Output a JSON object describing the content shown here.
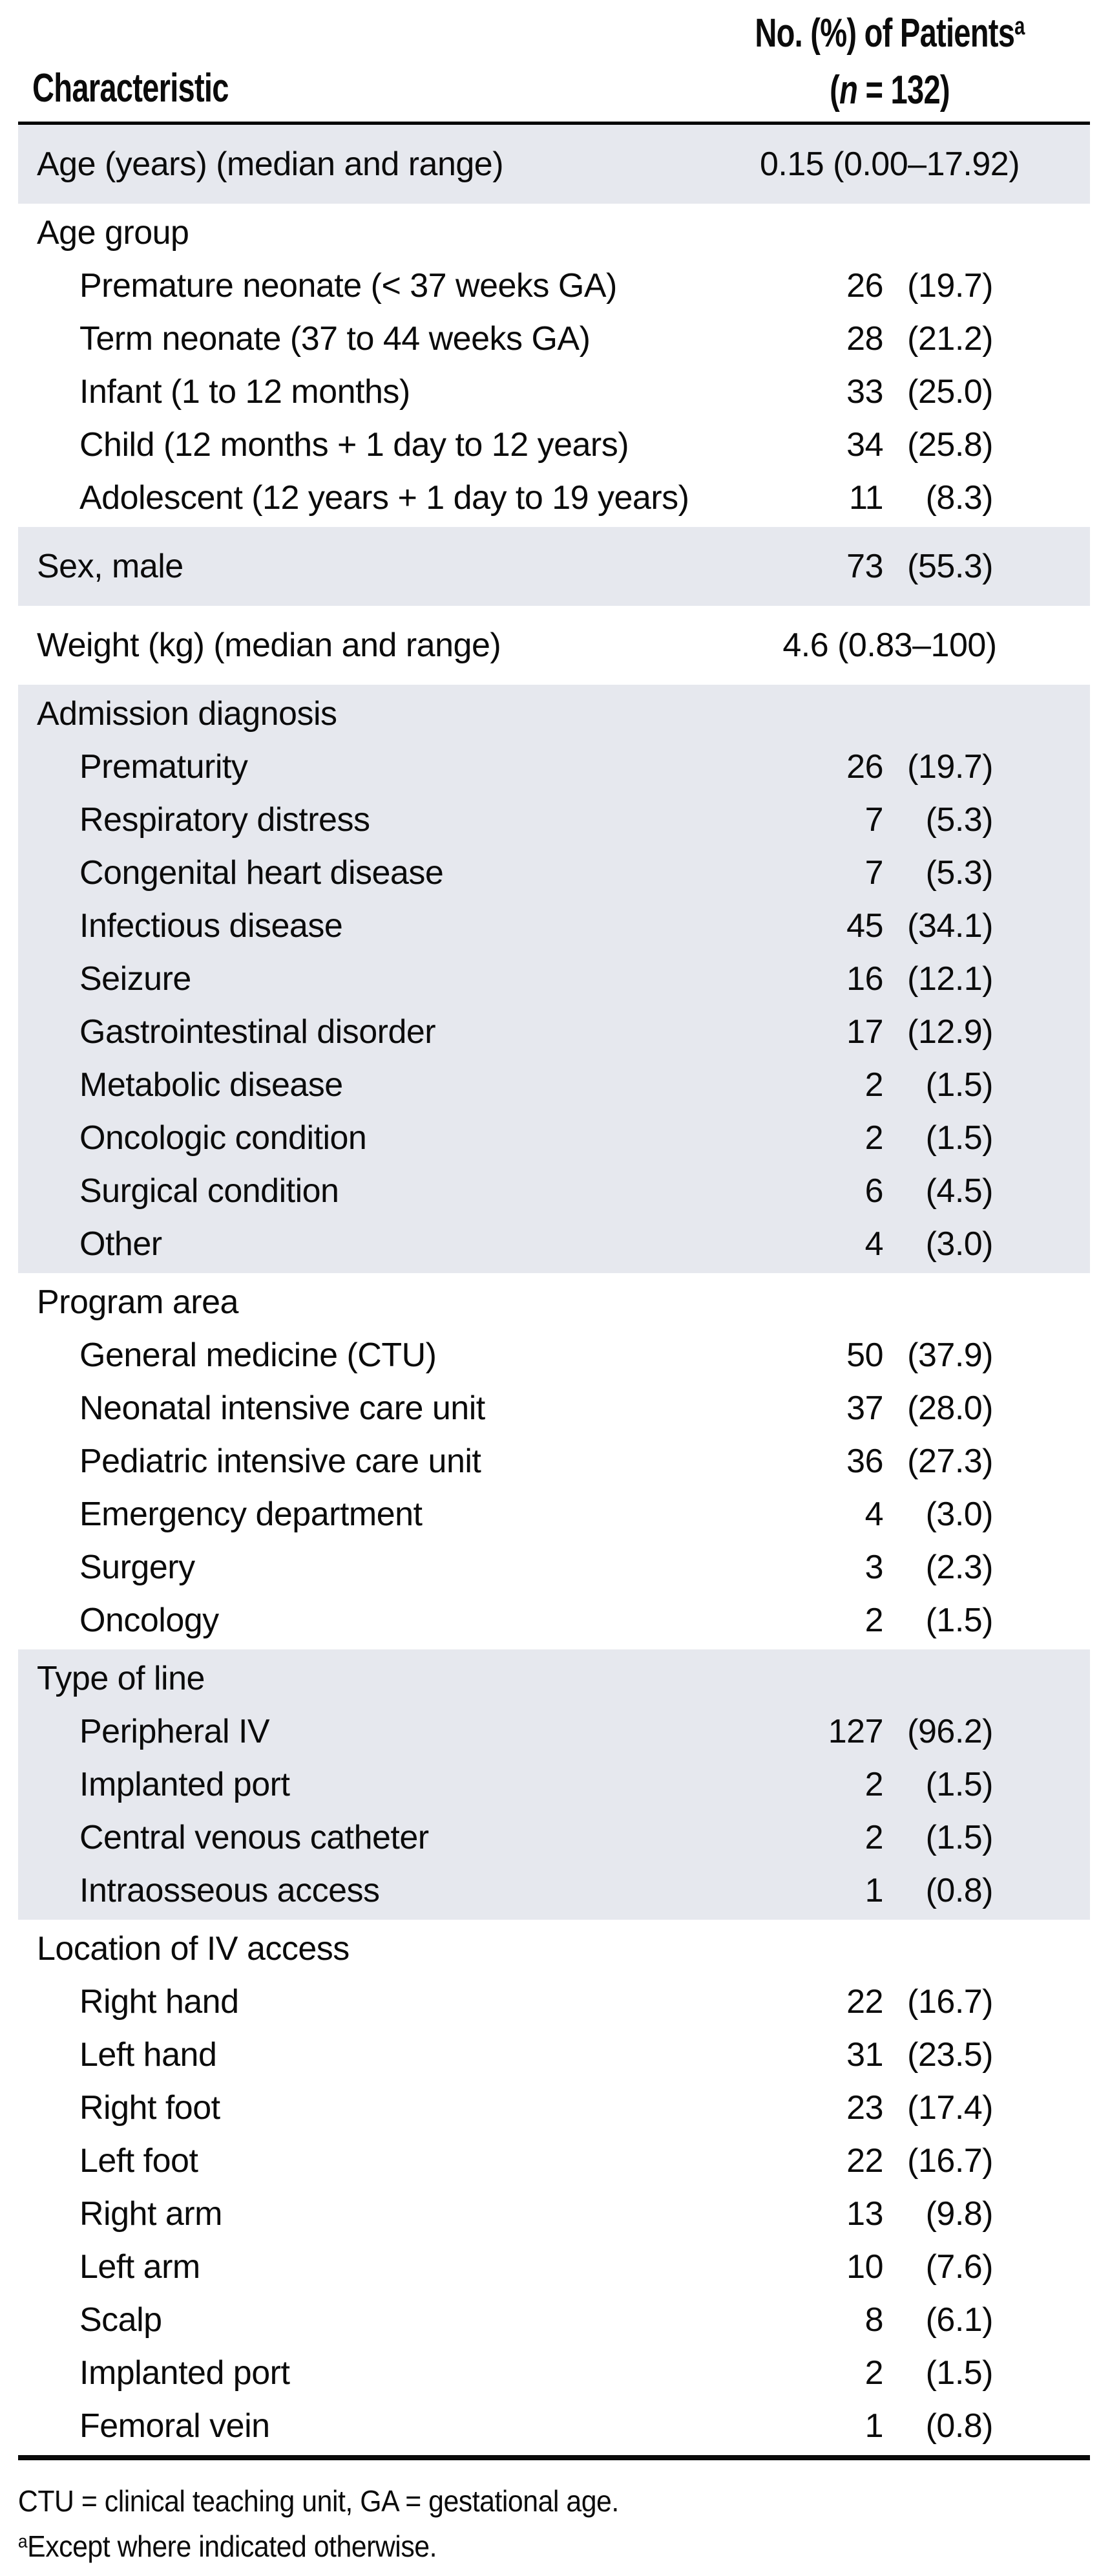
{
  "table": {
    "shade_color": "#e6e8ee",
    "header": {
      "col1": "Characteristic",
      "col2_line1": "No. (%) of Patients",
      "col2_line1_sup": "a",
      "col2_line2_open": "(",
      "col2_line2_italic": "n",
      "col2_line2_rest": " = 132)"
    },
    "sections": [
      {
        "shaded": true,
        "rows": [
          {
            "label": "Age (years) (median and range)",
            "indent": 0,
            "type": "span",
            "value": "0.15 (0.00–17.92)"
          }
        ]
      },
      {
        "shaded": false,
        "rows": [
          {
            "label": "Age group",
            "indent": 0,
            "type": "none"
          },
          {
            "label": "Premature neonate (< 37 weeks GA)",
            "indent": 1,
            "type": "pair",
            "n": "26",
            "pct": "(19.7)"
          },
          {
            "label": "Term neonate (37 to 44 weeks GA)",
            "indent": 1,
            "type": "pair",
            "n": "28",
            "pct": "(21.2)"
          },
          {
            "label": "Infant (1 to 12 months)",
            "indent": 1,
            "type": "pair",
            "n": "33",
            "pct": "(25.0)"
          },
          {
            "label": "Child (12 months + 1 day to 12 years)",
            "indent": 1,
            "type": "pair",
            "n": "34",
            "pct": "(25.8)"
          },
          {
            "label": "Adolescent (12 years + 1 day to 19 years)",
            "indent": 1,
            "type": "pair",
            "n": "11",
            "pct": "(8.3)"
          }
        ]
      },
      {
        "shaded": true,
        "rows": [
          {
            "label": "Sex, male",
            "indent": 0,
            "type": "pair",
            "n": "73",
            "pct": "(55.3)"
          }
        ]
      },
      {
        "shaded": false,
        "rows": [
          {
            "label": "Weight (kg) (median and range)",
            "indent": 0,
            "type": "span",
            "value": "4.6 (0.83–100)"
          }
        ]
      },
      {
        "shaded": true,
        "rows": [
          {
            "label": "Admission diagnosis",
            "indent": 0,
            "type": "none"
          },
          {
            "label": "Prematurity",
            "indent": 1,
            "type": "pair",
            "n": "26",
            "pct": "(19.7)"
          },
          {
            "label": "Respiratory distress",
            "indent": 1,
            "type": "pair",
            "n": "7",
            "pct": "(5.3)"
          },
          {
            "label": "Congenital heart disease",
            "indent": 1,
            "type": "pair",
            "n": "7",
            "pct": "(5.3)"
          },
          {
            "label": "Infectious disease",
            "indent": 1,
            "type": "pair",
            "n": "45",
            "pct": "(34.1)"
          },
          {
            "label": "Seizure",
            "indent": 1,
            "type": "pair",
            "n": "16",
            "pct": "(12.1)"
          },
          {
            "label": "Gastrointestinal disorder",
            "indent": 1,
            "type": "pair",
            "n": "17",
            "pct": "(12.9)"
          },
          {
            "label": "Metabolic disease",
            "indent": 1,
            "type": "pair",
            "n": "2",
            "pct": "(1.5)"
          },
          {
            "label": "Oncologic condition",
            "indent": 1,
            "type": "pair",
            "n": "2",
            "pct": "(1.5)"
          },
          {
            "label": "Surgical condition",
            "indent": 1,
            "type": "pair",
            "n": "6",
            "pct": "(4.5)"
          },
          {
            "label": "Other",
            "indent": 1,
            "type": "pair",
            "n": "4",
            "pct": "(3.0)"
          }
        ]
      },
      {
        "shaded": false,
        "rows": [
          {
            "label": "Program area",
            "indent": 0,
            "type": "none"
          },
          {
            "label": "General medicine (CTU)",
            "indent": 1,
            "type": "pair",
            "n": "50",
            "pct": "(37.9)"
          },
          {
            "label": "Neonatal intensive care unit",
            "indent": 1,
            "type": "pair",
            "n": "37",
            "pct": "(28.0)"
          },
          {
            "label": "Pediatric intensive care unit",
            "indent": 1,
            "type": "pair",
            "n": "36",
            "pct": "(27.3)"
          },
          {
            "label": "Emergency department",
            "indent": 1,
            "type": "pair",
            "n": "4",
            "pct": "(3.0)"
          },
          {
            "label": "Surgery",
            "indent": 1,
            "type": "pair",
            "n": "3",
            "pct": "(2.3)"
          },
          {
            "label": "Oncology",
            "indent": 1,
            "type": "pair",
            "n": "2",
            "pct": "(1.5)"
          }
        ]
      },
      {
        "shaded": true,
        "rows": [
          {
            "label": "Type of line",
            "indent": 0,
            "type": "none"
          },
          {
            "label": "Peripheral IV",
            "indent": 1,
            "type": "pair",
            "n": "127",
            "pct": "(96.2)"
          },
          {
            "label": "Implanted port",
            "indent": 1,
            "type": "pair",
            "n": "2",
            "pct": "(1.5)"
          },
          {
            "label": "Central venous catheter",
            "indent": 1,
            "type": "pair",
            "n": "2",
            "pct": "(1.5)"
          },
          {
            "label": "Intraosseous access",
            "indent": 1,
            "type": "pair",
            "n": "1",
            "pct": "(0.8)"
          }
        ]
      },
      {
        "shaded": false,
        "rows": [
          {
            "label": "Location of IV access",
            "indent": 0,
            "type": "none"
          },
          {
            "label": "Right hand",
            "indent": 1,
            "type": "pair",
            "n": "22",
            "pct": "(16.7)"
          },
          {
            "label": "Left hand",
            "indent": 1,
            "type": "pair",
            "n": "31",
            "pct": "(23.5)"
          },
          {
            "label": "Right foot",
            "indent": 1,
            "type": "pair",
            "n": "23",
            "pct": "(17.4)"
          },
          {
            "label": "Left foot",
            "indent": 1,
            "type": "pair",
            "n": "22",
            "pct": "(16.7)"
          },
          {
            "label": "Right arm",
            "indent": 1,
            "type": "pair",
            "n": "13",
            "pct": "(9.8)"
          },
          {
            "label": "Left arm",
            "indent": 1,
            "type": "pair",
            "n": "10",
            "pct": "(7.6)"
          },
          {
            "label": "Scalp",
            "indent": 1,
            "type": "pair",
            "n": "8",
            "pct": "(6.1)"
          },
          {
            "label": "Implanted port",
            "indent": 1,
            "type": "pair",
            "n": "2",
            "pct": "(1.5)"
          },
          {
            "label": "Femoral vein",
            "indent": 1,
            "type": "pair",
            "n": "1",
            "pct": "(0.8)"
          }
        ]
      }
    ],
    "footnotes": {
      "abbreviations": "CTU = clinical teaching unit, GA = gestational age.",
      "a_sup": "a",
      "a_text": "Except where indicated otherwise."
    }
  }
}
